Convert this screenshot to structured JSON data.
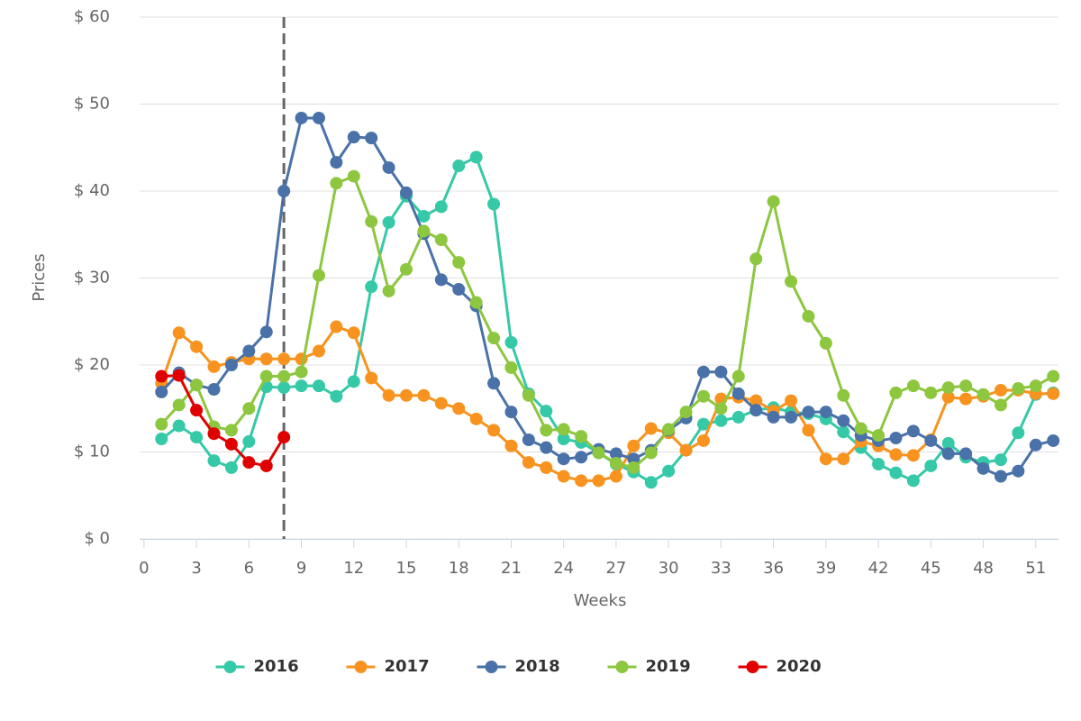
{
  "chart_data": {
    "type": "line",
    "xlabel": "Weeks",
    "ylabel": "Prices",
    "x": [
      1,
      2,
      3,
      4,
      5,
      6,
      7,
      8,
      9,
      10,
      11,
      12,
      13,
      14,
      15,
      16,
      17,
      18,
      19,
      20,
      21,
      22,
      23,
      24,
      25,
      26,
      27,
      28,
      29,
      30,
      31,
      32,
      33,
      34,
      35,
      36,
      37,
      38,
      39,
      40,
      41,
      42,
      43,
      44,
      45,
      46,
      47,
      48,
      49,
      50,
      51,
      52
    ],
    "xlim": [
      -0.25,
      52.3
    ],
    "xticks": [
      0,
      3,
      6,
      9,
      12,
      15,
      18,
      21,
      24,
      27,
      30,
      33,
      36,
      39,
      42,
      45,
      48,
      51
    ],
    "ylim": [
      0,
      60
    ],
    "yticks": [
      {
        "value": 0,
        "label": "$ 0"
      },
      {
        "value": 10,
        "label": "$ 10"
      },
      {
        "value": 20,
        "label": "$ 20"
      },
      {
        "value": 30,
        "label": "$ 30"
      },
      {
        "value": 40,
        "label": "$ 40"
      },
      {
        "value": 50,
        "label": "$ 50"
      },
      {
        "value": 60,
        "label": "$ 60"
      }
    ],
    "grid": true,
    "reference_x": 8,
    "legend": "bottom",
    "series": [
      {
        "name": "2016",
        "color": "#36c9a7",
        "values": [
          11.5,
          13,
          11.7,
          9,
          8.2,
          11.2,
          17.5,
          17.4,
          17.6,
          17.6,
          16.4,
          18.1,
          29,
          36.4,
          39.4,
          37.1,
          38.2,
          42.9,
          43.9,
          38.5,
          22.6,
          16.7,
          14.7,
          11.5,
          11.1,
          9.9,
          8.6,
          7.7,
          6.5,
          7.8,
          10.2,
          13.2,
          13.6,
          14,
          14.8,
          15.1,
          14.6,
          14.4,
          13.8,
          12.3,
          10.5,
          8.6,
          7.6,
          6.7,
          8.4,
          11,
          9.4,
          8.8,
          9.1,
          12.2,
          16.6,
          16.8
        ]
      },
      {
        "name": "2017",
        "color": "#f7931e",
        "values": [
          17.9,
          23.7,
          22.1,
          19.8,
          20.3,
          20.7,
          20.7,
          20.7,
          20.7,
          21.6,
          24.4,
          23.7,
          18.5,
          16.5,
          16.5,
          16.5,
          15.6,
          15,
          13.8,
          12.5,
          10.7,
          8.8,
          8.2,
          7.2,
          6.7,
          6.7,
          7.2,
          10.7,
          12.7,
          12.2,
          10.2,
          11.3,
          16.1,
          16.3,
          15.9,
          14.7,
          15.9,
          12.5,
          9.2,
          9.2,
          11.2,
          10.7,
          9.7,
          9.6,
          11.4,
          16.3,
          16.1,
          16.4,
          17.1,
          17.1,
          16.7,
          16.7
        ]
      },
      {
        "name": "2018",
        "color": "#4a72a8",
        "values": [
          16.9,
          19.1,
          17.7,
          17.2,
          20,
          21.6,
          23.8,
          40,
          48.4,
          48.4,
          43.3,
          46.2,
          46.1,
          42.7,
          39.8,
          35.1,
          29.8,
          28.7,
          26.8,
          17.9,
          14.6,
          11.4,
          10.5,
          9.2,
          9.4,
          10.3,
          9.8,
          9.2,
          10.2,
          12.5,
          13.9,
          19.2,
          19.2,
          16.7,
          14.8,
          14,
          14,
          14.6,
          14.6,
          13.6,
          11.9,
          11.3,
          11.6,
          12.4,
          11.3,
          9.8,
          9.8,
          8.1,
          7.2,
          7.8,
          10.8,
          11.3
        ]
      },
      {
        "name": "2019",
        "color": "#8dc63f",
        "values": [
          13.2,
          15.4,
          17.7,
          12.9,
          12.5,
          15,
          18.7,
          18.7,
          19.2,
          30.3,
          40.9,
          41.7,
          36.5,
          28.5,
          31,
          35.4,
          34.4,
          31.8,
          27.2,
          23.1,
          19.7,
          16.5,
          12.5,
          12.6,
          11.8,
          9.9,
          8.7,
          8.2,
          9.9,
          12.6,
          14.6,
          16.4,
          15,
          18.7,
          32.2,
          38.8,
          29.6,
          25.6,
          22.5,
          16.5,
          12.7,
          11.9,
          16.8,
          17.6,
          16.8,
          17.4,
          17.6,
          16.6,
          15.4,
          17.3,
          17.6,
          18.7
        ]
      },
      {
        "name": "2020",
        "color": "#e00000",
        "values": [
          18.7,
          18.8,
          14.8,
          12.1,
          10.9,
          8.8,
          8.4,
          11.7,
          null,
          null,
          null,
          null,
          null,
          null,
          null,
          null,
          null,
          null,
          null,
          null,
          null,
          null,
          null,
          null,
          null,
          null,
          null,
          null,
          null,
          null,
          null,
          null,
          null,
          null,
          null,
          null,
          null,
          null,
          null,
          null,
          null,
          null,
          null,
          null,
          null,
          null,
          null,
          null,
          null,
          null,
          null,
          null
        ]
      }
    ]
  }
}
